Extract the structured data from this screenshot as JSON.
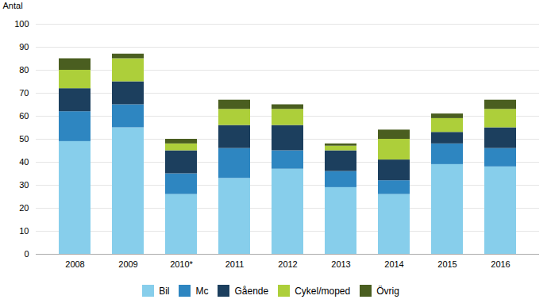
{
  "chart_data": {
    "type": "bar",
    "stacked": true,
    "ylabel": "Antal",
    "categories": [
      "2008",
      "2009",
      "2010*",
      "2011",
      "2012",
      "2013",
      "2014",
      "2015",
      "2016"
    ],
    "series": [
      {
        "name": "Bil",
        "color": "#87CEEB",
        "values": [
          49,
          55,
          26,
          33,
          37,
          29,
          26,
          39,
          38
        ]
      },
      {
        "name": "Mc",
        "color": "#2E86C1",
        "values": [
          13,
          10,
          9,
          13,
          8,
          7,
          6,
          9,
          8
        ]
      },
      {
        "name": "Gående",
        "color": "#1C3F5E",
        "values": [
          10,
          10,
          10,
          10,
          11,
          9,
          9,
          5,
          9
        ]
      },
      {
        "name": "Cykel/moped",
        "color": "#ADCF3A",
        "values": [
          8,
          10,
          3,
          7,
          7,
          2,
          9,
          6,
          8
        ]
      },
      {
        "name": "Övrig",
        "color": "#4A5E20",
        "values": [
          5,
          2,
          2,
          4,
          2,
          1,
          4,
          2,
          4
        ]
      }
    ],
    "ylim": [
      0,
      100
    ],
    "yticks": [
      0,
      10,
      20,
      30,
      40,
      50,
      60,
      70,
      80,
      90,
      100
    ],
    "grid": true,
    "legend": "bottom"
  }
}
